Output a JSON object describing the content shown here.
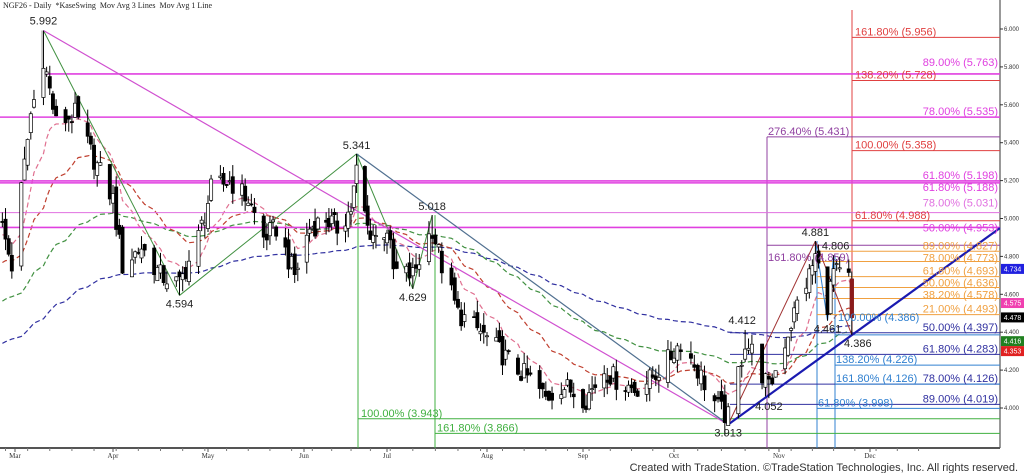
{
  "header": {
    "title": "NGF26 - Daily  *KaseSwing  Mov Avg 3 Lines  Mov Avg 1 Line"
  },
  "footer": {
    "text": "Created with TradeStation. ©TradeStation Technologies, Inc. All rights reserved."
  },
  "chart_data": {
    "type": "candlestick",
    "symbol": "NGF26",
    "interval": "Daily",
    "ylim": [
      3.8,
      6.1
    ],
    "y_ticks": [
      "6.000",
      "5.800",
      "5.600",
      "5.400",
      "5.200",
      "5.000",
      "4.800",
      "4.600",
      "4.400",
      "4.200",
      "4.000"
    ],
    "x_ticks": [
      "Mar",
      "Apr",
      "May",
      "Jun",
      "Jul",
      "Aug",
      "Sep",
      "Oct",
      "Nov",
      "Dec"
    ],
    "candle_colors": {
      "up": "#ffffff",
      "down": "#000000",
      "wick": "#000000"
    },
    "approx_closes": [
      [
        "2025-02-25",
        4.95
      ],
      [
        "2025-02-28",
        4.75
      ],
      [
        "2025-03-06",
        5.55
      ],
      [
        "2025-03-10",
        5.85
      ],
      [
        "2025-03-14",
        5.5
      ],
      [
        "2025-03-20",
        5.55
      ],
      [
        "2025-03-25",
        5.35
      ],
      [
        "2025-04-01",
        5.1
      ],
      [
        "2025-04-04",
        4.75
      ],
      [
        "2025-04-10",
        4.85
      ],
      [
        "2025-04-16",
        4.7
      ],
      [
        "2025-04-22",
        4.65
      ],
      [
        "2025-04-28",
        4.9
      ],
      [
        "2025-05-02",
        5.15
      ],
      [
        "2025-05-08",
        5.2
      ],
      [
        "2025-05-14",
        5.1
      ],
      [
        "2025-05-19",
        4.9
      ],
      [
        "2025-05-23",
        4.95
      ],
      [
        "2025-05-29",
        4.7
      ],
      [
        "2025-06-03",
        4.95
      ],
      [
        "2025-06-09",
        5.0
      ],
      [
        "2025-06-13",
        4.95
      ],
      [
        "2025-06-18",
        5.05
      ],
      [
        "2025-06-20",
        5.25
      ],
      [
        "2025-06-24",
        4.95
      ],
      [
        "2025-06-27",
        4.9
      ],
      [
        "2025-07-01",
        4.95
      ],
      [
        "2025-07-03",
        4.72
      ],
      [
        "2025-07-09",
        4.7
      ],
      [
        "2025-07-15",
        4.95
      ],
      [
        "2025-07-18",
        4.75
      ],
      [
        "2025-07-23",
        4.5
      ],
      [
        "2025-07-30",
        4.4
      ],
      [
        "2025-08-05",
        4.3
      ],
      [
        "2025-08-11",
        4.2
      ],
      [
        "2025-08-15",
        4.15
      ],
      [
        "2025-08-20",
        4.05
      ],
      [
        "2025-08-25",
        4.12
      ],
      [
        "2025-09-02",
        4.05
      ],
      [
        "2025-09-08",
        4.2
      ],
      [
        "2025-09-12",
        4.15
      ],
      [
        "2025-09-18",
        4.1
      ],
      [
        "2025-09-23",
        4.15
      ],
      [
        "2025-09-29",
        4.25
      ],
      [
        "2025-10-03",
        4.35
      ],
      [
        "2025-10-08",
        4.2
      ],
      [
        "2025-10-14",
        4.0
      ],
      [
        "2025-10-17",
        3.95
      ],
      [
        "2025-10-22",
        4.35
      ],
      [
        "2025-10-24",
        4.3
      ],
      [
        "2025-10-29",
        4.1
      ],
      [
        "2025-11-03",
        4.35
      ],
      [
        "2025-11-07",
        4.55
      ],
      [
        "2025-11-11",
        4.7
      ],
      [
        "2025-11-13",
        4.8
      ],
      [
        "2025-11-17",
        4.55
      ],
      [
        "2025-11-19",
        4.72
      ],
      [
        "2025-11-21",
        4.7
      ],
      [
        "2025-11-24",
        4.68
      ],
      [
        "2025-11-25",
        4.478
      ]
    ],
    "swing_points": [
      {
        "label": "5.992",
        "date": "2025-03-10",
        "price": 5.992,
        "type": "high"
      },
      {
        "label": "4.594",
        "date": "2025-04-22",
        "price": 4.594,
        "type": "low"
      },
      {
        "label": "5.341",
        "date": "2025-06-20",
        "price": 5.341,
        "type": "high"
      },
      {
        "label": "4.629",
        "date": "2025-07-09",
        "price": 4.629,
        "type": "low"
      },
      {
        "label": "5.018",
        "date": "2025-07-15",
        "price": 5.018,
        "type": "high"
      },
      {
        "label": "3.913",
        "date": "2025-10-17",
        "price": 3.913,
        "type": "low"
      },
      {
        "label": "4.412",
        "date": "2025-10-22",
        "price": 4.412,
        "type": "high"
      },
      {
        "label": "4.052",
        "date": "2025-10-29",
        "price": 4.052,
        "type": "low"
      },
      {
        "label": "4.881",
        "date": "2025-11-13",
        "price": 4.881,
        "type": "high"
      },
      {
        "label": "4.461",
        "date": "2025-11-17",
        "price": 4.461,
        "type": "low"
      },
      {
        "label": "4.806",
        "date": "2025-11-19",
        "price": 4.806,
        "type": "high"
      },
      {
        "label": "4.386",
        "date": "2025-11-25",
        "price": 4.386,
        "type": "low"
      }
    ],
    "fib_levels": [
      {
        "label": "161.80% (5.956)",
        "value": 5.956,
        "color": "#e04040"
      },
      {
        "label": "138.20% (5.728)",
        "value": 5.728,
        "color": "#e04040"
      },
      {
        "label": "100.00% (5.358)",
        "value": 5.358,
        "color": "#e04040"
      },
      {
        "label": "61.80% (4.988)",
        "value": 4.988,
        "color": "#e04040"
      },
      {
        "label": "89.00% (5.763)",
        "value": 5.763,
        "color": "#e040e0"
      },
      {
        "label": "78.00% (5.535)",
        "value": 5.535,
        "color": "#e040e0"
      },
      {
        "label": "61.80% (5.198)",
        "value": 5.198,
        "color": "#e040e0"
      },
      {
        "label": "61.80% (5.188)",
        "value": 5.188,
        "color": "#e040e0"
      },
      {
        "label": "78.00% (5.031)",
        "value": 5.031,
        "color": "#e070e0"
      },
      {
        "label": "50.00% (4.953)",
        "value": 4.953,
        "color": "#e040e0"
      },
      {
        "label": "276.40% (5.431)",
        "value": 5.431,
        "color": "#9040a0"
      },
      {
        "label": "161.80% (4.859)",
        "value": 4.859,
        "color": "#9040a0"
      },
      {
        "label": "89.00% (4.827)",
        "value": 4.827,
        "color": "#f0a040"
      },
      {
        "label": "78.00% (4.773)",
        "value": 4.773,
        "color": "#f0a040"
      },
      {
        "label": "61.80% (4.693)",
        "value": 4.693,
        "color": "#f0a040"
      },
      {
        "label": "50.00% (4.636)",
        "value": 4.636,
        "color": "#f0a040"
      },
      {
        "label": "38.20% (4.578)",
        "value": 4.578,
        "color": "#f0a040"
      },
      {
        "label": "21.00% (4.493)",
        "value": 4.493,
        "color": "#f0a040"
      },
      {
        "label": "50.00% (4.397)",
        "value": 4.397,
        "color": "#3030a0"
      },
      {
        "label": "61.80% (4.283)",
        "value": 4.283,
        "color": "#3030a0"
      },
      {
        "label": "78.00% (4.126)",
        "value": 4.126,
        "color": "#3030a0"
      },
      {
        "label": "89.00% (4.019)",
        "value": 4.019,
        "color": "#3030a0"
      },
      {
        "label": "100.00% (4.386)",
        "value": 4.386,
        "color": "#3080d0"
      },
      {
        "label": "138.20% (4.226)",
        "value": 4.226,
        "color": "#3080d0"
      },
      {
        "label": "161.80% (4.126)",
        "value": 4.126,
        "color": "#3080d0"
      },
      {
        "label": "61.80% (3.998)",
        "value": 3.998,
        "color": "#3080d0"
      },
      {
        "label": "100.00% (3.943)",
        "value": 3.943,
        "color": "#40b040"
      },
      {
        "label": "161.80% (3.866)",
        "value": 3.866,
        "color": "#40b040"
      }
    ],
    "moving_averages": [
      {
        "color": "#3030a0",
        "style": "dashed"
      },
      {
        "color": "#409040",
        "style": "dashed"
      },
      {
        "color": "#c04030",
        "style": "dashed"
      },
      {
        "color": "#e07090",
        "style": "dashed"
      }
    ],
    "price_labels": [
      {
        "value": "4.734",
        "color": "#2020e0"
      },
      {
        "value": "4.575",
        "color": "#f040b0"
      },
      {
        "value": "4.478",
        "color": "#000000"
      },
      {
        "value": "4.416",
        "color": "#208020"
      },
      {
        "value": "4.353",
        "color": "#e02020"
      }
    ]
  }
}
